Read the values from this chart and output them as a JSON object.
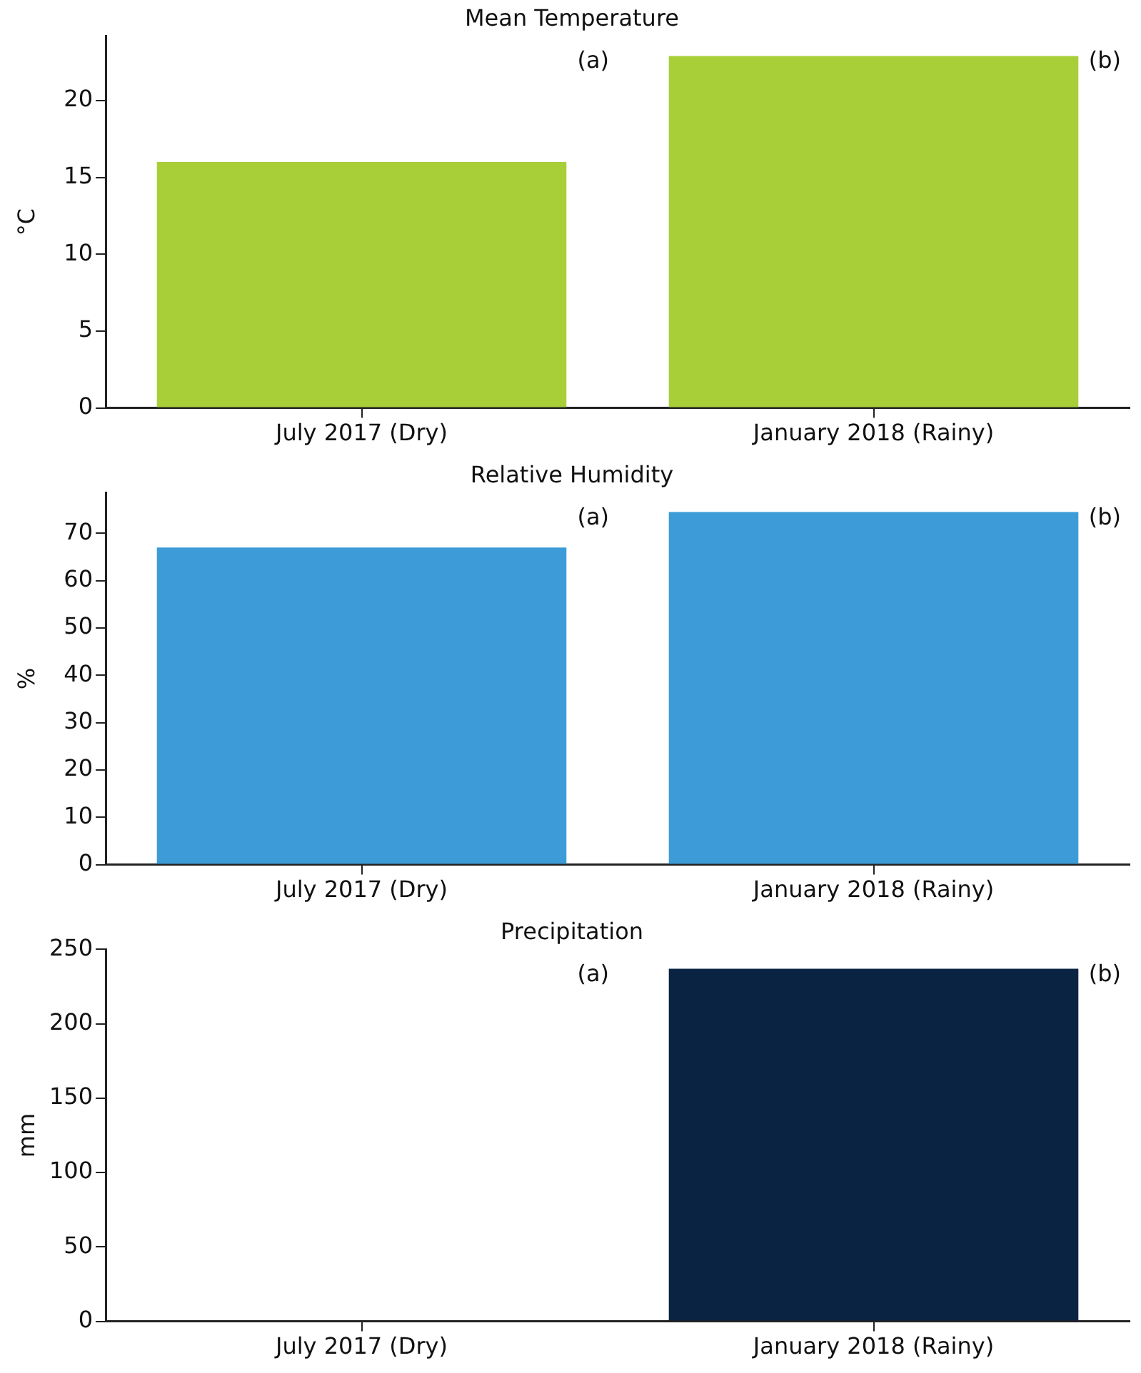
{
  "chart_data": [
    {
      "type": "bar",
      "title": "Mean Temperature",
      "ylabel": "°C",
      "categories": [
        "July 2017 (Dry)",
        "January 2018 (Rainy)"
      ],
      "values": [
        16.0,
        22.9
      ],
      "color": "#a8cf38",
      "ylim": [
        0,
        24.2
      ],
      "yticks": [
        0,
        5,
        10,
        15,
        20
      ],
      "grid": false,
      "legend": false,
      "annotations": [
        "(a)",
        "(b)"
      ]
    },
    {
      "type": "bar",
      "title": "Relative Humidity",
      "ylabel": "%",
      "categories": [
        "July 2017 (Dry)",
        "January 2018 (Rainy)"
      ],
      "values": [
        67,
        74.5
      ],
      "color": "#3d9bd7",
      "ylim": [
        0,
        78.6
      ],
      "yticks": [
        0,
        10,
        20,
        30,
        40,
        50,
        60,
        70
      ],
      "grid": false,
      "legend": false,
      "annotations": [
        "(a)",
        "(b)"
      ]
    },
    {
      "type": "bar",
      "title": "Precipitation",
      "ylabel": "mm",
      "categories": [
        "July 2017 (Dry)",
        "January 2018 (Rainy)"
      ],
      "values": [
        0,
        237
      ],
      "color": "#0a2342",
      "ylim": [
        0,
        250
      ],
      "yticks": [
        0,
        50,
        100,
        150,
        200,
        250
      ],
      "grid": false,
      "legend": false,
      "annotations": [
        "(a)",
        "(b)"
      ]
    }
  ]
}
